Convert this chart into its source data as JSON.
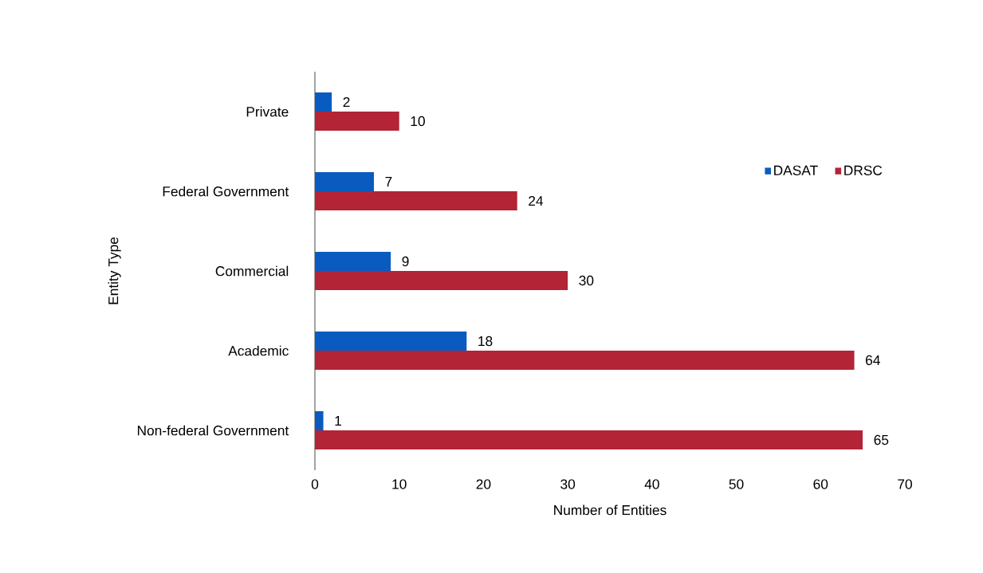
{
  "chart_data": {
    "type": "bar",
    "orientation": "horizontal",
    "xlabel": "Number of Entities",
    "ylabel": "Entity Type",
    "categories": [
      "Private",
      "Federal Government",
      "Commercial",
      "Academic",
      "Non-federal Government"
    ],
    "series": [
      {
        "name": "DASAT",
        "color": "#0a5bbf",
        "values": [
          2,
          7,
          9,
          18,
          1
        ]
      },
      {
        "name": "DRSC",
        "color": "#b22436",
        "values": [
          10,
          24,
          30,
          64,
          65
        ]
      }
    ],
    "xlim": [
      0,
      70
    ],
    "xticks": [
      0,
      10,
      20,
      30,
      40,
      50,
      60,
      70
    ],
    "data_labels": true,
    "legend": "right",
    "grid": false
  }
}
